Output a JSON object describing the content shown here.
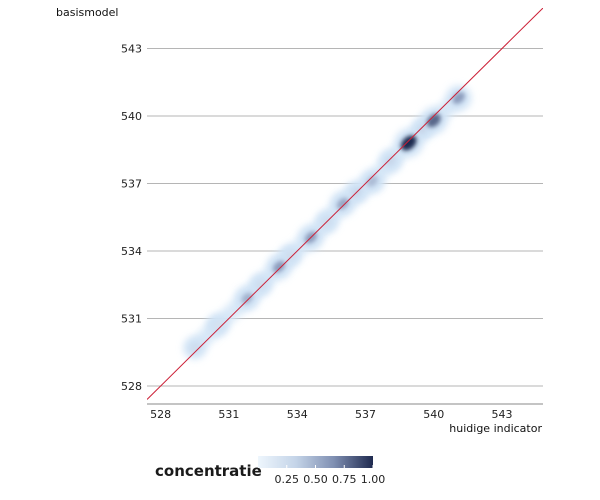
{
  "chart_data": {
    "type": "heatmap",
    "subtype": "density-scatter",
    "xlabel": "huidige indicator",
    "ylabel": "basismodel",
    "xlim": [
      527.4,
      544.8
    ],
    "ylim": [
      527.2,
      544.8
    ],
    "x_ticks": [
      528,
      531,
      534,
      537,
      540,
      543
    ],
    "y_ticks": [
      528,
      531,
      534,
      537,
      540,
      543
    ],
    "grid": "horizontal",
    "reference_line": "y = x",
    "reference_line_color": "#cc1f36",
    "points": [
      {
        "x": 529.5,
        "y": 529.7,
        "density": 0.25
      },
      {
        "x": 530.5,
        "y": 530.7,
        "density": 0.2
      },
      {
        "x": 531.8,
        "y": 531.9,
        "density": 0.5
      },
      {
        "x": 532.4,
        "y": 532.5,
        "density": 0.25
      },
      {
        "x": 533.2,
        "y": 533.3,
        "density": 0.6
      },
      {
        "x": 533.7,
        "y": 533.8,
        "density": 0.25
      },
      {
        "x": 534.6,
        "y": 534.6,
        "density": 0.6
      },
      {
        "x": 535.3,
        "y": 535.3,
        "density": 0.25
      },
      {
        "x": 536.0,
        "y": 536.1,
        "density": 0.55
      },
      {
        "x": 536.6,
        "y": 536.6,
        "density": 0.3
      },
      {
        "x": 537.3,
        "y": 537.1,
        "density": 0.45
      },
      {
        "x": 538.1,
        "y": 538.0,
        "density": 0.3
      },
      {
        "x": 538.9,
        "y": 538.8,
        "density": 1.0
      },
      {
        "x": 539.5,
        "y": 539.4,
        "density": 0.3
      },
      {
        "x": 540.0,
        "y": 539.8,
        "density": 0.8
      },
      {
        "x": 541.1,
        "y": 540.8,
        "density": 0.6
      }
    ],
    "legend": {
      "title": "concentratie",
      "ticks": [
        "0.25",
        "0.50",
        "0.75",
        "1.00"
      ],
      "tick_values": [
        0.25,
        0.5,
        0.75,
        1.0
      ],
      "colors": [
        "#eef6fd",
        "#c4d4e8",
        "#7f8fb2",
        "#1f2a4f"
      ],
      "placement": "bottom"
    }
  }
}
